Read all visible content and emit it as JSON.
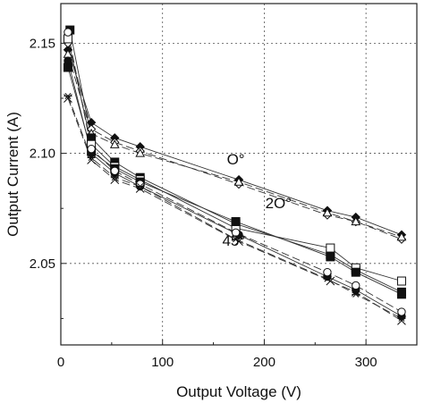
{
  "chart_data": {
    "type": "scatter",
    "xlabel": "Output Voltage (V)",
    "ylabel": "Output Current (A)",
    "xlim": [
      0,
      350
    ],
    "ylim": [
      2.013,
      2.168
    ],
    "xticks": [
      0,
      100,
      200,
      300
    ],
    "xtick_labels": [
      "0",
      "100",
      "200",
      "300"
    ],
    "yticks": [
      2.05,
      2.1,
      2.15
    ],
    "ytick_labels": [
      "2.05",
      "2.10",
      "2.15"
    ],
    "grid": true,
    "grid_style": "dotted",
    "annotations": [
      {
        "text": "O°",
        "x": 172,
        "y": 2.095
      },
      {
        "text": "2O°",
        "x": 214,
        "y": 2.075
      },
      {
        "text": "45°",
        "x": 170,
        "y": 2.058
      }
    ],
    "series": [
      {
        "marker": "diamond-filled",
        "line": "solid",
        "points": [
          [
            7,
            2.147
          ],
          [
            30,
            2.114
          ],
          [
            53,
            2.107
          ],
          [
            78,
            2.103
          ],
          [
            175,
            2.088
          ],
          [
            262,
            2.074
          ],
          [
            290,
            2.071
          ],
          [
            335,
            2.063
          ]
        ]
      },
      {
        "marker": "diamond-open",
        "line": "dashed",
        "points": [
          [
            7,
            2.15
          ],
          [
            30,
            2.111
          ],
          [
            53,
            2.105
          ],
          [
            78,
            2.101
          ],
          [
            175,
            2.086
          ],
          [
            262,
            2.072
          ],
          [
            290,
            2.069
          ],
          [
            335,
            2.061
          ]
        ]
      },
      {
        "marker": "triangle-open",
        "line": "dashed",
        "points": [
          [
            7,
            2.145
          ],
          [
            30,
            2.109
          ],
          [
            53,
            2.104
          ],
          [
            78,
            2.1
          ],
          [
            175,
            2.087
          ],
          [
            262,
            2.073
          ],
          [
            290,
            2.069
          ],
          [
            335,
            2.062
          ]
        ]
      },
      {
        "marker": "square-filled",
        "line": "solid",
        "points": [
          [
            9,
            2.156
          ],
          [
            30,
            2.107
          ],
          [
            53,
            2.096
          ],
          [
            78,
            2.089
          ],
          [
            172,
            2.068
          ],
          [
            265,
            2.054
          ],
          [
            290,
            2.047
          ],
          [
            335,
            2.037
          ]
        ]
      },
      {
        "marker": "square-open",
        "line": "solid",
        "points": [
          [
            7,
            2.152
          ],
          [
            30,
            2.104
          ],
          [
            53,
            2.094
          ],
          [
            78,
            2.088
          ],
          [
            172,
            2.066
          ],
          [
            265,
            2.057
          ],
          [
            290,
            2.048
          ],
          [
            335,
            2.042
          ]
        ]
      },
      {
        "marker": "square-filled",
        "line": "solid",
        "points": [
          [
            7,
            2.139
          ],
          [
            30,
            2.101
          ],
          [
            53,
            2.093
          ],
          [
            78,
            2.087
          ],
          [
            172,
            2.069
          ],
          [
            265,
            2.053
          ],
          [
            290,
            2.046
          ],
          [
            335,
            2.036
          ]
        ]
      },
      {
        "marker": "circle-filled",
        "line": "solid",
        "points": [
          [
            7,
            2.142
          ],
          [
            30,
            2.1
          ],
          [
            53,
            2.091
          ],
          [
            78,
            2.085
          ],
          [
            175,
            2.063
          ],
          [
            262,
            2.044
          ],
          [
            290,
            2.038
          ],
          [
            335,
            2.026
          ]
        ]
      },
      {
        "marker": "circle-open",
        "line": "dashed",
        "points": [
          [
            7,
            2.155
          ],
          [
            30,
            2.102
          ],
          [
            53,
            2.092
          ],
          [
            78,
            2.086
          ],
          [
            172,
            2.064
          ],
          [
            262,
            2.046
          ],
          [
            290,
            2.04
          ],
          [
            335,
            2.028
          ]
        ]
      },
      {
        "marker": "x",
        "line": "dashed",
        "points": [
          [
            7,
            2.125
          ],
          [
            30,
            2.097
          ],
          [
            53,
            2.088
          ],
          [
            78,
            2.084
          ],
          [
            175,
            2.06
          ],
          [
            265,
            2.042
          ],
          [
            290,
            2.037
          ],
          [
            335,
            2.024
          ]
        ]
      },
      {
        "marker": "asterisk",
        "line": "dashed",
        "points": [
          [
            7,
            2.126
          ],
          [
            30,
            2.098
          ],
          [
            53,
            2.089
          ],
          [
            78,
            2.085
          ],
          [
            172,
            2.061
          ],
          [
            262,
            2.043
          ],
          [
            290,
            2.036
          ],
          [
            335,
            2.025
          ]
        ]
      }
    ]
  }
}
